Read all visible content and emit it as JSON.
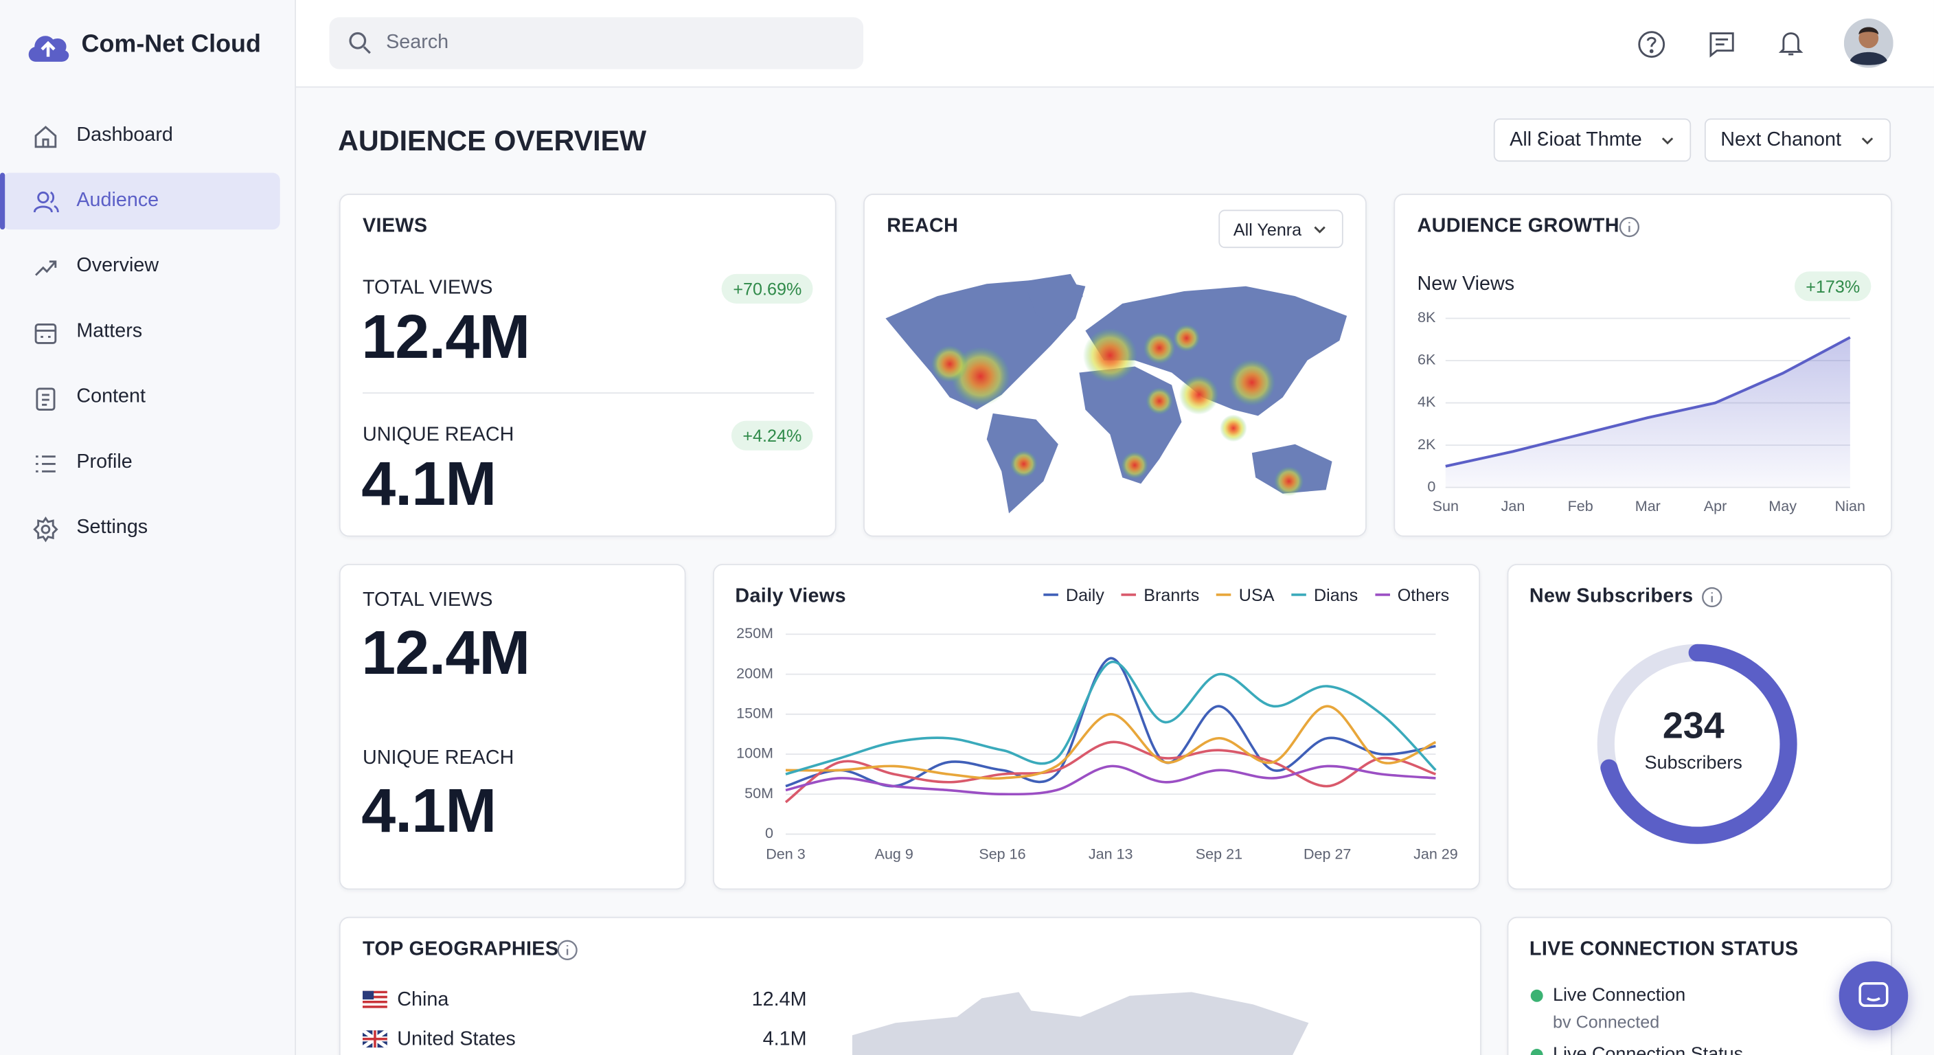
{
  "app": {
    "name": "Com-Net Cloud"
  },
  "search_placeholder": "Search",
  "nav": [
    "Dashboard",
    "Audience",
    "Overview",
    "Matters",
    "Content",
    "Profile",
    "Settings"
  ],
  "page_title": "AUDIENCE OVERVIEW",
  "filters": [
    "All Ɛioat Thmte",
    "Next Chanont"
  ],
  "views_card": {
    "title": "VIEWS",
    "metrics": [
      {
        "label": "TOTAL VIEWS",
        "value": "12.4M",
        "change": "+70.69%"
      },
      {
        "label": "UNIQUE REACH",
        "value": "4.1M",
        "change": "+4.24%"
      }
    ]
  },
  "reach_card": {
    "title": "REACH",
    "filter": "All Yenra"
  },
  "audience_growth": {
    "type": "area",
    "title": "AUDIENCE GROWTH",
    "series_label": "New Views",
    "change": "+173%",
    "categories": [
      "Sun",
      "Jan",
      "Feb",
      "Mar",
      "Apr",
      "May",
      "Nian"
    ],
    "values": [
      1000,
      1700,
      2500,
      3300,
      4000,
      5400,
      7100
    ],
    "color": "#5b5fc7",
    "grid": true,
    "ylim": [
      0,
      8000
    ],
    "yticks": [
      0,
      {
        "value": 2000,
        "label": "2K"
      },
      {
        "value": 4000,
        "label": "4K"
      },
      {
        "value": 6000,
        "label": "6K"
      },
      {
        "value": 8000,
        "label": "8K"
      }
    ]
  },
  "totals_card": {
    "metrics": [
      {
        "label": "TOTAL VIEWS",
        "value": "12.4M"
      },
      {
        "label": "UNIQUE REACH",
        "value": "4.1M"
      }
    ]
  },
  "daily_views": {
    "type": "line",
    "title": "Daily Views",
    "grid": true,
    "categories": [
      "Den 3",
      null,
      "Aug 9",
      null,
      "Sep 16",
      null,
      "Jan 13",
      null,
      "Sep 21",
      null,
      "Dep 27",
      null,
      "Jan 29"
    ],
    "ylim": [
      0,
      250
    ],
    "yticks": [
      0,
      {
        "value": 50,
        "label": "50M"
      },
      {
        "value": 100,
        "label": "100M"
      },
      {
        "value": 150,
        "label": "150M"
      },
      {
        "value": 200,
        "label": "200M"
      },
      {
        "value": 250,
        "label": "250M"
      }
    ],
    "series": [
      {
        "name": "Daily",
        "color": "#3f5fb8",
        "values": [
          60,
          80,
          60,
          90,
          80,
          75,
          220,
          90,
          160,
          80,
          120,
          100,
          110
        ]
      },
      {
        "name": "Branrts",
        "color": "#d9596b",
        "values": [
          40,
          90,
          75,
          65,
          75,
          80,
          115,
          95,
          105,
          90,
          60,
          95,
          75
        ]
      },
      {
        "name": "USA",
        "color": "#e8a63a",
        "values": [
          80,
          80,
          85,
          75,
          70,
          85,
          150,
          90,
          120,
          90,
          160,
          90,
          115
        ]
      },
      {
        "name": "Dians",
        "color": "#3aaabb",
        "values": [
          75,
          95,
          115,
          120,
          105,
          95,
          215,
          140,
          200,
          160,
          185,
          150,
          80
        ]
      },
      {
        "name": "Others",
        "color": "#9b4fc4",
        "values": [
          55,
          70,
          60,
          55,
          50,
          55,
          85,
          65,
          80,
          70,
          85,
          75,
          70
        ]
      }
    ]
  },
  "new_subscribers": {
    "title": "New Subscribers",
    "count": "234",
    "label": "Subscribers"
  },
  "top_geographies": {
    "title": "TOP GEOGRAPHIES",
    "rows": [
      {
        "country": "China",
        "value": "12.4M"
      },
      {
        "country": "United States",
        "value": "4.1M"
      }
    ]
  },
  "live_status": {
    "title": "LIVE CONNECTION STATUS",
    "items": [
      {
        "label": "Live Connection",
        "sub": "bv Connected"
      },
      {
        "label": "Live Connection Status"
      }
    ]
  }
}
